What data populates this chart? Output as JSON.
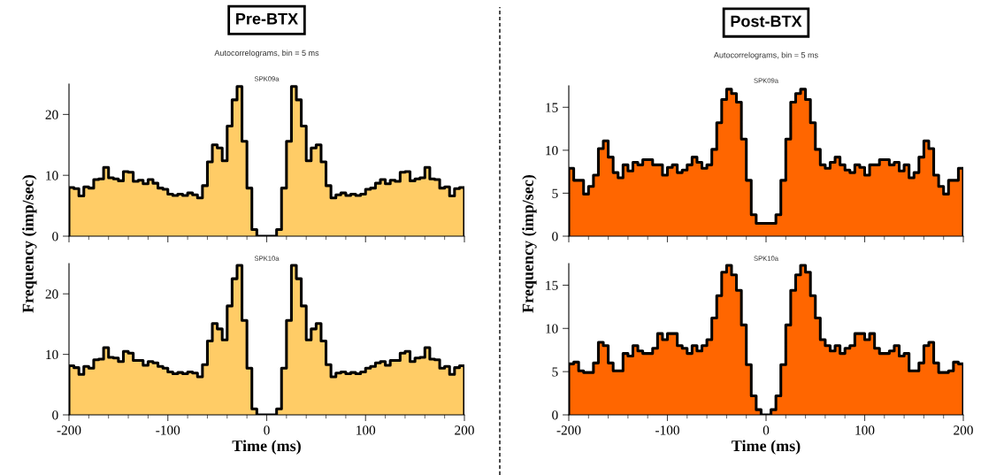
{
  "chart_data": [
    {
      "type": "histogram",
      "title": "SPK09a",
      "annotations": [
        "Pre-BTX",
        "Autocorrelograms, bin = 5 ms"
      ],
      "ylabel": "Frequency (imp/sec)",
      "color": "#ffcc66",
      "tick_labels": "y",
      "bins": [
        -200,
        -195,
        -190,
        -185,
        -180,
        -175,
        -170,
        -165,
        -160,
        -155,
        -150,
        -145,
        -140,
        -135,
        -130,
        -125,
        -120,
        -115,
        -110,
        -105,
        -100,
        -95,
        -90,
        -85,
        -80,
        -75,
        -70,
        -65,
        -60,
        -55,
        -50,
        -45,
        -40,
        -35,
        -30,
        -25,
        -20,
        -15,
        -10,
        -5,
        0,
        5,
        10,
        15,
        20,
        25,
        30,
        35,
        40,
        45,
        50,
        55,
        60,
        65,
        70,
        75,
        80,
        85,
        90,
        95,
        100,
        105,
        110,
        115,
        120,
        125,
        130,
        135,
        140,
        145,
        150,
        155,
        160,
        165,
        170,
        175,
        180,
        185,
        190,
        195,
        200
      ],
      "values": [
        8.0,
        7.8,
        6.6,
        8.1,
        7.9,
        9.3,
        9.4,
        11.3,
        9.6,
        9.4,
        9.1,
        10.6,
        10.5,
        9.0,
        9.2,
        8.6,
        9.3,
        8.7,
        7.9,
        7.7,
        6.9,
        6.7,
        6.9,
        6.7,
        7.1,
        6.8,
        6.3,
        8.3,
        12.2,
        15.0,
        14.5,
        12.4,
        18.1,
        22.4,
        24.6,
        15.6,
        7.9,
        1.1,
        0,
        0,
        0,
        0,
        1.1,
        7.9,
        15.6,
        24.6,
        22.4,
        18.1,
        12.4,
        14.5,
        15.0,
        12.2,
        8.3,
        6.3,
        6.8,
        7.1,
        6.7,
        6.9,
        6.7,
        6.9,
        7.7,
        7.9,
        8.7,
        9.3,
        8.6,
        9.2,
        9.0,
        10.5,
        10.6,
        9.1,
        9.4,
        9.6,
        11.3,
        9.4,
        9.3,
        7.9,
        8.1,
        6.6,
        7.8,
        8.0
      ],
      "xlim": [
        -200,
        200
      ],
      "ylim": [
        0,
        25
      ],
      "yticks": [
        0,
        10,
        20
      ],
      "xticks": [
        -200,
        {
          "value": -180,
          "label": null
        },
        {
          "value": -160,
          "label": null
        },
        {
          "value": -140,
          "label": null
        },
        {
          "value": -120,
          "label": null
        },
        -100,
        {
          "value": -80,
          "label": null
        },
        {
          "value": -60,
          "label": null
        },
        {
          "value": -40,
          "label": null
        },
        {
          "value": -20,
          "label": null
        },
        0,
        {
          "value": 20,
          "label": null
        },
        {
          "value": 40,
          "label": null
        },
        {
          "value": 60,
          "label": null
        },
        {
          "value": 80,
          "label": null
        },
        100,
        {
          "value": 120,
          "label": null
        },
        {
          "value": 140,
          "label": null
        },
        {
          "value": 160,
          "label": null
        },
        {
          "value": 180,
          "label": null
        },
        200
      ]
    },
    {
      "type": "histogram",
      "title": "SPK10a",
      "xlabel": "Time (ms)",
      "color": "#ffcc66",
      "bins": [
        -200,
        -195,
        -190,
        -185,
        -180,
        -175,
        -170,
        -165,
        -160,
        -155,
        -150,
        -145,
        -140,
        -135,
        -130,
        -125,
        -120,
        -115,
        -110,
        -105,
        -100,
        -95,
        -90,
        -85,
        -80,
        -75,
        -70,
        -65,
        -60,
        -55,
        -50,
        -45,
        -40,
        -35,
        -30,
        -25,
        -20,
        -15,
        -10,
        -5,
        0,
        5,
        10,
        15,
        20,
        25,
        30,
        35,
        40,
        45,
        50,
        55,
        60,
        65,
        70,
        75,
        80,
        85,
        90,
        95,
        100,
        105,
        110,
        115,
        120,
        125,
        130,
        135,
        140,
        145,
        150,
        155,
        160,
        165,
        170,
        175,
        180,
        185,
        190,
        195,
        200
      ],
      "values": [
        8.1,
        7.8,
        6.7,
        8.0,
        7.7,
        9.1,
        9.2,
        11.1,
        9.5,
        9.4,
        8.8,
        10.5,
        10.2,
        9.0,
        9.0,
        8.2,
        8.8,
        8.6,
        8.0,
        7.7,
        7.1,
        6.8,
        7.0,
        6.8,
        7.1,
        6.9,
        6.3,
        8.3,
        12.2,
        15.1,
        14.2,
        12.4,
        18.0,
        22.5,
        24.7,
        15.6,
        7.7,
        1.0,
        0,
        0,
        0,
        0,
        1.0,
        7.7,
        15.6,
        24.7,
        22.5,
        18.0,
        12.4,
        14.2,
        15.1,
        12.2,
        8.3,
        6.3,
        6.9,
        7.1,
        6.8,
        7.0,
        6.8,
        7.1,
        7.7,
        8.0,
        8.6,
        8.8,
        8.2,
        9.0,
        9.0,
        10.2,
        10.5,
        8.8,
        9.4,
        9.5,
        11.1,
        9.2,
        9.1,
        7.7,
        8.0,
        6.7,
        7.8,
        8.1
      ],
      "xlim": [
        -200,
        200
      ],
      "ylim": [
        0,
        25
      ],
      "yticks": [
        0,
        10,
        20
      ],
      "xticks": [
        -200,
        {
          "value": -180,
          "label": null
        },
        {
          "value": -160,
          "label": null
        },
        {
          "value": -140,
          "label": null
        },
        {
          "value": -120,
          "label": null
        },
        -100,
        {
          "value": -80,
          "label": null
        },
        {
          "value": -60,
          "label": null
        },
        {
          "value": -40,
          "label": null
        },
        {
          "value": -20,
          "label": null
        },
        0,
        {
          "value": 20,
          "label": null
        },
        {
          "value": 40,
          "label": null
        },
        {
          "value": 60,
          "label": null
        },
        {
          "value": 80,
          "label": null
        },
        100,
        {
          "value": 120,
          "label": null
        },
        {
          "value": 140,
          "label": null
        },
        {
          "value": 160,
          "label": null
        },
        {
          "value": 180,
          "label": null
        },
        200
      ]
    },
    {
      "type": "histogram",
      "title": "SPK09a",
      "annotations": [
        "Post-BTX",
        "Autocorrelograms, bin = 5 ms"
      ],
      "ylabel": "Frequency (imp/sec)",
      "color": "#ff6600",
      "tick_labels": "y",
      "bins": [
        -200,
        -195,
        -190,
        -185,
        -180,
        -175,
        -170,
        -165,
        -160,
        -155,
        -150,
        -145,
        -140,
        -135,
        -130,
        -125,
        -120,
        -115,
        -110,
        -105,
        -100,
        -95,
        -90,
        -85,
        -80,
        -75,
        -70,
        -65,
        -60,
        -55,
        -50,
        -45,
        -40,
        -35,
        -30,
        -25,
        -20,
        -15,
        -10,
        -5,
        0,
        5,
        10,
        15,
        20,
        25,
        30,
        35,
        40,
        45,
        50,
        55,
        60,
        65,
        70,
        75,
        80,
        85,
        90,
        95,
        100,
        105,
        110,
        115,
        120,
        125,
        130,
        135,
        140,
        145,
        150,
        155,
        160,
        165,
        170,
        175,
        180,
        185,
        190,
        195,
        200
      ],
      "values": [
        7.9,
        6.5,
        6.5,
        4.9,
        5.8,
        7.1,
        10.2,
        11.1,
        9.2,
        7.4,
        6.8,
        8.3,
        7.6,
        8.6,
        8.3,
        8.9,
        8.9,
        8.3,
        8.3,
        7.1,
        8.0,
        8.3,
        7.4,
        7.7,
        8.3,
        9.2,
        8.6,
        7.9,
        8.3,
        10.1,
        13.2,
        15.9,
        17.1,
        16.6,
        15.6,
        11.3,
        6.5,
        2.5,
        1.5,
        1.5,
        1.5,
        1.5,
        2.5,
        6.5,
        11.3,
        15.6,
        16.6,
        17.1,
        15.9,
        13.2,
        10.1,
        8.3,
        7.9,
        8.6,
        9.2,
        8.3,
        7.7,
        7.4,
        8.3,
        8.0,
        7.1,
        8.3,
        8.3,
        8.9,
        8.9,
        8.3,
        8.6,
        7.6,
        8.3,
        6.8,
        7.4,
        9.2,
        11.1,
        10.2,
        7.1,
        5.8,
        4.9,
        6.5,
        6.5,
        7.9
      ],
      "xlim": [
        -200,
        200
      ],
      "ylim": [
        0,
        17.5
      ],
      "yticks": [
        0,
        5,
        10,
        15
      ],
      "xticks": [
        -200,
        {
          "value": -180,
          "label": null
        },
        {
          "value": -160,
          "label": null
        },
        {
          "value": -140,
          "label": null
        },
        {
          "value": -120,
          "label": null
        },
        -100,
        {
          "value": -80,
          "label": null
        },
        {
          "value": -60,
          "label": null
        },
        {
          "value": -40,
          "label": null
        },
        {
          "value": -20,
          "label": null
        },
        0,
        {
          "value": 20,
          "label": null
        },
        {
          "value": 40,
          "label": null
        },
        {
          "value": 60,
          "label": null
        },
        {
          "value": 80,
          "label": null
        },
        100,
        {
          "value": 120,
          "label": null
        },
        {
          "value": 140,
          "label": null
        },
        {
          "value": 160,
          "label": null
        },
        {
          "value": 180,
          "label": null
        },
        200
      ]
    },
    {
      "type": "histogram",
      "title": "SPK10a",
      "xlabel": "Time (ms)",
      "color": "#ff6600",
      "bins": [
        -200,
        -195,
        -190,
        -185,
        -180,
        -175,
        -170,
        -165,
        -160,
        -155,
        -150,
        -145,
        -140,
        -135,
        -130,
        -125,
        -120,
        -115,
        -110,
        -105,
        -100,
        -95,
        -90,
        -85,
        -80,
        -75,
        -70,
        -65,
        -60,
        -55,
        -50,
        -45,
        -40,
        -35,
        -30,
        -25,
        -20,
        -15,
        -10,
        -5,
        0,
        5,
        10,
        15,
        20,
        25,
        30,
        35,
        40,
        45,
        50,
        55,
        60,
        65,
        70,
        75,
        80,
        85,
        90,
        95,
        100,
        105,
        110,
        115,
        120,
        125,
        130,
        135,
        140,
        145,
        150,
        155,
        160,
        165,
        170,
        175,
        180,
        185,
        190,
        195,
        200
      ],
      "values": [
        5.9,
        6.1,
        5.1,
        4.9,
        4.9,
        6.0,
        8.4,
        8.0,
        6.0,
        5.1,
        5.1,
        7.1,
        6.8,
        8.0,
        7.4,
        7.1,
        7.1,
        7.7,
        9.4,
        8.7,
        9.4,
        9.4,
        8.0,
        7.7,
        7.1,
        8.0,
        7.4,
        8.0,
        8.7,
        11.2,
        13.8,
        16.5,
        17.3,
        16.2,
        14.4,
        10.4,
        5.8,
        2.2,
        0.6,
        0,
        0,
        0.6,
        2.2,
        5.8,
        10.4,
        14.4,
        16.2,
        17.3,
        16.5,
        13.8,
        11.2,
        8.7,
        8.0,
        7.4,
        8.0,
        7.1,
        7.7,
        8.0,
        9.4,
        9.4,
        8.7,
        9.4,
        7.7,
        7.1,
        7.1,
        7.4,
        8.0,
        6.8,
        7.1,
        5.1,
        5.1,
        6.0,
        8.0,
        8.4,
        6.0,
        4.9,
        4.9,
        5.1,
        6.1,
        5.9
      ],
      "xlim": [
        -200,
        200
      ],
      "ylim": [
        0,
        17.5
      ],
      "yticks": [
        0,
        5,
        10,
        15
      ],
      "xticks": [
        -200,
        {
          "value": -180,
          "label": null
        },
        {
          "value": -160,
          "label": null
        },
        {
          "value": -140,
          "label": null
        },
        {
          "value": -120,
          "label": null
        },
        -100,
        {
          "value": -80,
          "label": null
        },
        {
          "value": -60,
          "label": null
        },
        {
          "value": -40,
          "label": null
        },
        {
          "value": -20,
          "label": null
        },
        0,
        {
          "value": 20,
          "label": null
        },
        {
          "value": 40,
          "label": null
        },
        {
          "value": 60,
          "label": null
        },
        {
          "value": 80,
          "label": null
        },
        100,
        {
          "value": 120,
          "label": null
        },
        {
          "value": 140,
          "label": null
        },
        {
          "value": 160,
          "label": null
        },
        {
          "value": 180,
          "label": null
        },
        200
      ]
    }
  ]
}
